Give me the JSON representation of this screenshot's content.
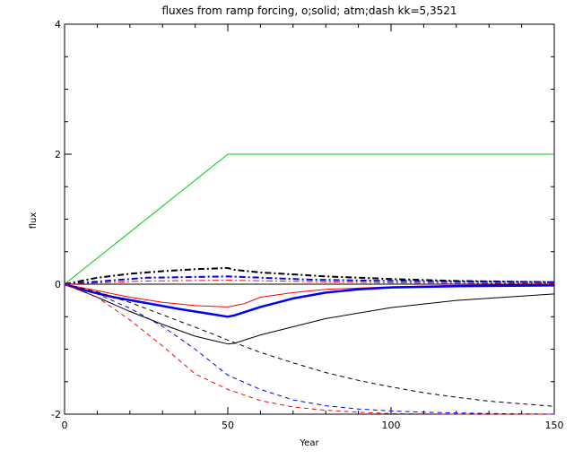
{
  "chart_data": {
    "type": "line",
    "title": "fluxes from ramp forcing, o;solid; atm;dash kk=5,3521",
    "xlabel": "Year",
    "ylabel": "flux",
    "xlim": [
      0,
      150
    ],
    "ylim": [
      -2,
      4
    ],
    "x_ticks": [
      0,
      50,
      100,
      150
    ],
    "y_ticks": [
      -2,
      0,
      2,
      4
    ],
    "grid": false,
    "series": [
      {
        "color": "#00cc00",
        "style": "solid",
        "width": 1,
        "x": [
          0,
          50,
          150
        ],
        "y": [
          0,
          2,
          2
        ]
      },
      {
        "color": "#000000",
        "style": "dashdot",
        "width": 2,
        "x": [
          0,
          10,
          20,
          30,
          40,
          50,
          52,
          60,
          80,
          100,
          120,
          150
        ],
        "y": [
          0,
          0.1,
          0.16,
          0.2,
          0.23,
          0.25,
          0.22,
          0.18,
          0.12,
          0.08,
          0.05,
          0.03
        ]
      },
      {
        "color": "#0000ff",
        "style": "dashdot",
        "width": 2,
        "x": [
          0,
          25,
          50,
          75,
          100,
          150
        ],
        "y": [
          0,
          0.1,
          0.12,
          0.07,
          0.05,
          0.03
        ]
      },
      {
        "color": "#ff0000",
        "style": "dashdot",
        "width": 1,
        "x": [
          0,
          25,
          50,
          75,
          100,
          150
        ],
        "y": [
          0,
          0.05,
          0.06,
          0.04,
          0.02,
          0.01
        ]
      },
      {
        "color": "#ff0000",
        "style": "solid",
        "width": 1,
        "x": [
          0,
          10,
          20,
          30,
          40,
          50,
          55,
          60,
          70,
          80,
          100,
          120,
          150
        ],
        "y": [
          0,
          -0.1,
          -0.2,
          -0.28,
          -0.33,
          -0.35,
          -0.3,
          -0.2,
          -0.13,
          -0.08,
          -0.04,
          -0.02,
          -0.01
        ]
      },
      {
        "color": "#0000ff",
        "style": "solid",
        "width": 2.5,
        "x": [
          0,
          5,
          15,
          25,
          35,
          45,
          50,
          52,
          60,
          70,
          80,
          90,
          100,
          120,
          150
        ],
        "y": [
          0,
          -0.08,
          -0.2,
          -0.29,
          -0.38,
          -0.46,
          -0.5,
          -0.48,
          -0.35,
          -0.22,
          -0.13,
          -0.08,
          -0.05,
          -0.03,
          -0.02
        ]
      },
      {
        "color": "#000000",
        "style": "solid",
        "width": 1,
        "x": [
          0,
          10,
          20,
          30,
          40,
          50,
          52,
          60,
          80,
          100,
          120,
          150
        ],
        "y": [
          0,
          -0.2,
          -0.42,
          -0.62,
          -0.8,
          -0.92,
          -0.91,
          -0.78,
          -0.53,
          -0.36,
          -0.25,
          -0.15
        ]
      },
      {
        "color": "#000000",
        "style": "dashed",
        "width": 1,
        "x": [
          0,
          10,
          20,
          30,
          40,
          50,
          60,
          70,
          80,
          90,
          100,
          110,
          120,
          130,
          140,
          150
        ],
        "y": [
          0,
          -0.12,
          -0.28,
          -0.47,
          -0.66,
          -0.86,
          -1.05,
          -1.21,
          -1.36,
          -1.48,
          -1.58,
          -1.67,
          -1.74,
          -1.8,
          -1.84,
          -1.88
        ]
      },
      {
        "color": "#0000ff",
        "style": "dashed",
        "width": 1,
        "x": [
          0,
          10,
          20,
          30,
          40,
          50,
          60,
          70,
          80,
          90,
          100,
          110,
          120,
          130,
          150
        ],
        "y": [
          0,
          -0.15,
          -0.37,
          -0.65,
          -1.0,
          -1.4,
          -1.62,
          -1.78,
          -1.87,
          -1.92,
          -1.95,
          -1.97,
          -1.98,
          -1.99,
          -2.0
        ]
      },
      {
        "color": "#ff0000",
        "style": "dashed",
        "width": 1,
        "x": [
          0,
          10,
          20,
          30,
          40,
          50,
          60,
          70,
          80,
          90,
          100,
          120,
          150
        ],
        "y": [
          0,
          -0.2,
          -0.55,
          -0.95,
          -1.38,
          -1.62,
          -1.79,
          -1.89,
          -1.94,
          -1.97,
          -1.99,
          -2.0,
          -2.0
        ]
      }
    ]
  }
}
